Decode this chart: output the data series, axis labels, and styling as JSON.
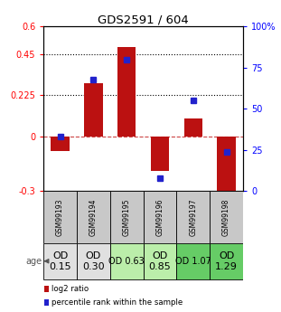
{
  "title": "GDS2591 / 604",
  "samples": [
    "GSM99193",
    "GSM99194",
    "GSM99195",
    "GSM99196",
    "GSM99197",
    "GSM99198"
  ],
  "log2_ratio": [
    -0.08,
    0.29,
    0.49,
    -0.19,
    0.1,
    -0.37
  ],
  "percentile_rank": [
    33,
    68,
    80,
    8,
    55,
    24
  ],
  "bar_color": "#bb1111",
  "dot_color": "#2222cc",
  "ylim_left": [
    -0.3,
    0.6
  ],
  "ylim_right": [
    0,
    100
  ],
  "yticks_left": [
    -0.3,
    0,
    0.225,
    0.45,
    0.6
  ],
  "ytick_labels_left": [
    "-0.3",
    "0",
    "0.225",
    "0.45",
    "0.6"
  ],
  "yticks_right": [
    0,
    25,
    50,
    75,
    100
  ],
  "ytick_labels_right": [
    "0",
    "25",
    "50",
    "75",
    "100%"
  ],
  "hlines": [
    0.225,
    0.45
  ],
  "age_labels": [
    "OD\n0.15",
    "OD\n0.30",
    "OD 0.63",
    "OD\n0.85",
    "OD 1.07",
    "OD\n1.29"
  ],
  "age_bg_colors": [
    "#e0e0e0",
    "#e0e0e0",
    "#bbeeaa",
    "#bbeeaa",
    "#66cc66",
    "#66cc66"
  ],
  "age_font_sizes": [
    8,
    8,
    7,
    8,
    7,
    8
  ],
  "sample_bg_color": "#c8c8c8",
  "legend_red": "log2 ratio",
  "legend_blue": "percentile rank within the sample"
}
